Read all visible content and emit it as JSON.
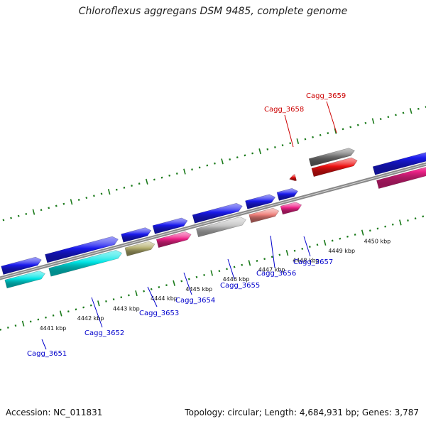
{
  "title": "Chloroflexus aggregans DSM 9485, complete genome",
  "footer": {
    "accession": "Accession: NC_011831",
    "summary": "Topology: circular; Length: 4,684,931 bp; Genes: 3,787"
  },
  "kbp_labels": [
    "4441 kbp",
    "4442 kbp",
    "4443 kbp",
    "4444 kbp",
    "4445 kbp",
    "4446 kbp",
    "4447 kbp",
    "4448 kbp",
    "4449 kbp",
    "4450 kbp"
  ],
  "genes": [
    {
      "name": "Cagg_3651",
      "color_class": "blue"
    },
    {
      "name": "Cagg_3652",
      "color_class": "blue"
    },
    {
      "name": "Cagg_3653",
      "color_class": "blue"
    },
    {
      "name": "Cagg_3654",
      "color_class": "blue"
    },
    {
      "name": "Cagg_3655",
      "color_class": "blue"
    },
    {
      "name": "Cagg_3656",
      "color_class": "blue"
    },
    {
      "name": "Cagg_3657",
      "color_class": "blue"
    },
    {
      "name": "Cagg_3658",
      "color_class": "red"
    },
    {
      "name": "Cagg_3659",
      "color_class": "red"
    }
  ],
  "colors": {
    "forward_label": "#0000cc",
    "reverse_label": "#cc0000",
    "axis": "#888888",
    "tick": "#1a7a1a",
    "cds_blue": "#1a1aee",
    "cyan": "#00e5e5",
    "olive": "#b5b070",
    "magenta": "#ee2288",
    "silver": "#c4c4c4",
    "salmon": "#ee7f7a",
    "red": "#ee1111",
    "gray": "#707070"
  }
}
